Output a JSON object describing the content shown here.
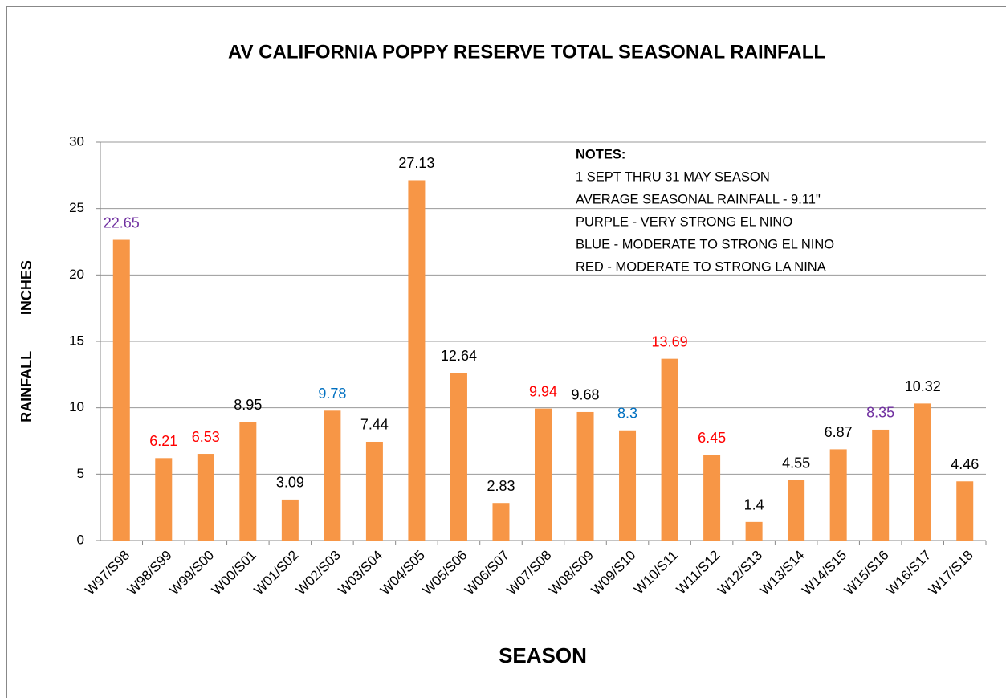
{
  "chart_data": {
    "type": "bar",
    "title": "AV CALIFORNIA POPPY RESERVE TOTAL SEASONAL RAINFALL",
    "xlabel": "SEASON",
    "ylabel": "RAINFALL INCHES",
    "categories": [
      "W97/S98",
      "W98/S99",
      "W99/S00",
      "W00/S01",
      "W01/S02",
      "W02/S03",
      "W03/S04",
      "W04/S05",
      "W05/S06",
      "W06/S07",
      "W07/S08",
      "W08/S09",
      "W09/S10",
      "W10/S11",
      "W11/S12",
      "W12/S13",
      "W13/S14",
      "W14/S15",
      "W15/S16",
      "W16/S17",
      "W17/S18"
    ],
    "values": [
      22.65,
      6.21,
      6.53,
      8.95,
      3.09,
      9.78,
      7.44,
      27.13,
      12.64,
      2.83,
      9.94,
      9.68,
      8.3,
      13.69,
      6.45,
      1.4,
      4.55,
      6.87,
      8.35,
      10.32,
      4.46
    ],
    "label_colors": [
      "#7030a0",
      "#ff0000",
      "#ff0000",
      "#000000",
      "#000000",
      "#0070c0",
      "#000000",
      "#000000",
      "#000000",
      "#000000",
      "#ff0000",
      "#000000",
      "#0070c0",
      "#ff0000",
      "#ff0000",
      "#000000",
      "#000000",
      "#000000",
      "#7030a0",
      "#000000",
      "#000000"
    ],
    "color": "#f79646",
    "ylim": [
      0,
      30
    ],
    "yticks": [
      0,
      5,
      10,
      15,
      20,
      25,
      30
    ],
    "grid": true,
    "notes": {
      "heading": "NOTES:",
      "lines": [
        "1 SEPT THRU 31 MAY SEASON",
        "AVERAGE SEASONAL RAINFALL - 9.11\"",
        "PURPLE - VERY STRONG EL NINO",
        "BLUE - MODERATE TO STRONG EL NINO",
        "RED - MODERATE TO STRONG LA NINA"
      ]
    }
  }
}
